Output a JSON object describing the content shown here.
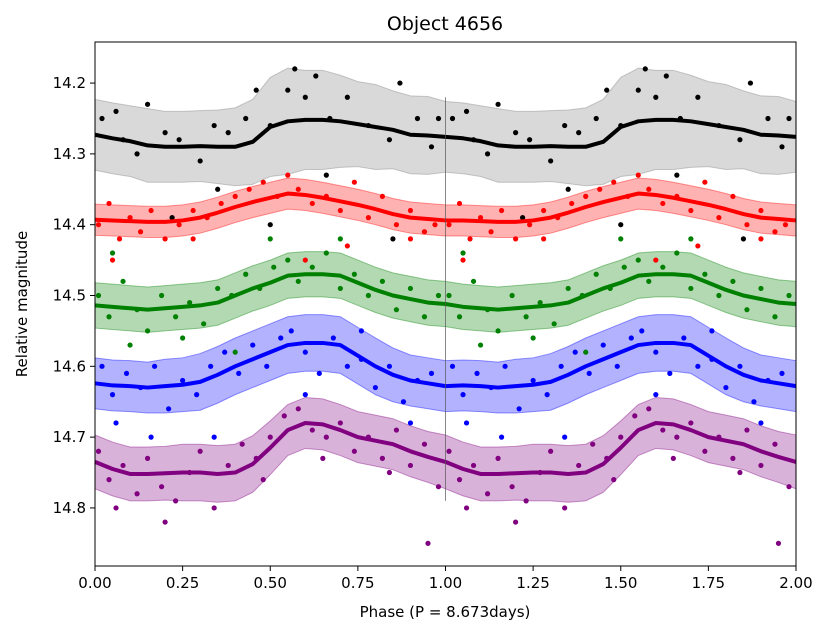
{
  "chart_data": {
    "type": "scatter",
    "title": "Object 4656",
    "xlabel": "Phase (P = 8.673days)",
    "ylabel": "Relative magnitude",
    "xlim": [
      0,
      2
    ],
    "ylim": [
      14.882,
      14.142
    ],
    "y_inverted": true,
    "grid": false,
    "xticks": [
      "0.00",
      "0.25",
      "0.50",
      "0.75",
      "1.00",
      "1.25",
      "1.50",
      "1.75",
      "2.00"
    ],
    "yticks": [
      "14.2",
      "14.3",
      "14.4",
      "14.5",
      "14.6",
      "14.7",
      "14.8"
    ],
    "phase_repeat": true,
    "phase_marker_at": 1.0,
    "mean_phase": [
      0,
      0.05,
      0.1,
      0.15,
      0.2,
      0.25,
      0.3,
      0.35,
      0.4,
      0.45,
      0.5,
      0.55,
      0.6,
      0.65,
      0.7,
      0.75,
      0.8,
      0.85,
      0.9,
      0.95,
      1.0
    ],
    "series": [
      {
        "color": "#000000",
        "band_color": "#808080",
        "mean": [
          14.273,
          14.278,
          14.282,
          14.288,
          14.29,
          14.29,
          14.289,
          14.29,
          14.29,
          14.283,
          14.262,
          14.254,
          14.252,
          14.252,
          14.254,
          14.258,
          14.262,
          14.266,
          14.273,
          14.274,
          14.276
        ],
        "halfwidth": [
          0.05,
          0.05,
          0.05,
          0.052,
          0.05,
          0.05,
          0.05,
          0.052,
          0.055,
          0.06,
          0.07,
          0.075,
          0.07,
          0.07,
          0.065,
          0.06,
          0.06,
          0.055,
          0.055,
          0.055,
          0.05
        ],
        "points": [
          [
            0.02,
            14.25
          ],
          [
            0.06,
            14.24
          ],
          [
            0.08,
            14.28
          ],
          [
            0.12,
            14.3
          ],
          [
            0.15,
            14.23
          ],
          [
            0.2,
            14.27
          ],
          [
            0.24,
            14.28
          ],
          [
            0.3,
            14.31
          ],
          [
            0.34,
            14.26
          ],
          [
            0.38,
            14.27
          ],
          [
            0.43,
            14.25
          ],
          [
            0.46,
            14.21
          ],
          [
            0.5,
            14.26
          ],
          [
            0.55,
            14.21
          ],
          [
            0.57,
            14.18
          ],
          [
            0.6,
            14.22
          ],
          [
            0.63,
            14.19
          ],
          [
            0.67,
            14.25
          ],
          [
            0.72,
            14.22
          ],
          [
            0.78,
            14.26
          ],
          [
            0.84,
            14.28
          ],
          [
            0.87,
            14.2
          ],
          [
            0.92,
            14.25
          ],
          [
            0.96,
            14.29
          ],
          [
            0.98,
            14.25
          ],
          [
            0.22,
            14.39
          ],
          [
            0.5,
            14.4
          ],
          [
            0.85,
            14.42
          ],
          [
            0.66,
            14.33
          ],
          [
            0.35,
            14.35
          ]
        ]
      },
      {
        "color": "#ff0000",
        "band_color": "#ff0000",
        "mean": [
          14.393,
          14.394,
          14.395,
          14.396,
          14.396,
          14.394,
          14.39,
          14.383,
          14.375,
          14.368,
          14.362,
          14.356,
          14.358,
          14.362,
          14.367,
          14.372,
          14.378,
          14.385,
          14.39,
          14.392,
          14.394
        ],
        "halfwidth": [
          0.022,
          0.022,
          0.022,
          0.022,
          0.022,
          0.022,
          0.022,
          0.022,
          0.022,
          0.022,
          0.022,
          0.022,
          0.022,
          0.022,
          0.022,
          0.022,
          0.022,
          0.022,
          0.022,
          0.022,
          0.022
        ],
        "points": [
          [
            0.01,
            14.4
          ],
          [
            0.04,
            14.37
          ],
          [
            0.07,
            14.42
          ],
          [
            0.1,
            14.39
          ],
          [
            0.13,
            14.41
          ],
          [
            0.16,
            14.38
          ],
          [
            0.2,
            14.42
          ],
          [
            0.24,
            14.4
          ],
          [
            0.28,
            14.38
          ],
          [
            0.32,
            14.39
          ],
          [
            0.36,
            14.37
          ],
          [
            0.4,
            14.36
          ],
          [
            0.44,
            14.35
          ],
          [
            0.48,
            14.34
          ],
          [
            0.52,
            14.36
          ],
          [
            0.55,
            14.33
          ],
          [
            0.58,
            14.35
          ],
          [
            0.62,
            14.37
          ],
          [
            0.66,
            14.36
          ],
          [
            0.7,
            14.38
          ],
          [
            0.74,
            14.34
          ],
          [
            0.78,
            14.39
          ],
          [
            0.82,
            14.36
          ],
          [
            0.86,
            14.4
          ],
          [
            0.9,
            14.38
          ],
          [
            0.94,
            14.41
          ],
          [
            0.97,
            14.4
          ],
          [
            0.05,
            14.45
          ],
          [
            0.28,
            14.42
          ],
          [
            0.72,
            14.43
          ],
          [
            0.9,
            14.42
          ],
          [
            0.6,
            14.45
          ]
        ]
      },
      {
        "color": "#008000",
        "band_color": "#008000",
        "mean": [
          14.514,
          14.516,
          14.518,
          14.52,
          14.518,
          14.516,
          14.514,
          14.51,
          14.5,
          14.49,
          14.482,
          14.472,
          14.47,
          14.47,
          14.472,
          14.482,
          14.492,
          14.5,
          14.505,
          14.51,
          14.512
        ],
        "halfwidth": [
          0.032,
          0.032,
          0.032,
          0.032,
          0.032,
          0.032,
          0.032,
          0.032,
          0.032,
          0.032,
          0.032,
          0.032,
          0.032,
          0.032,
          0.032,
          0.032,
          0.032,
          0.032,
          0.032,
          0.032,
          0.032
        ],
        "points": [
          [
            0.01,
            14.5
          ],
          [
            0.04,
            14.53
          ],
          [
            0.08,
            14.48
          ],
          [
            0.12,
            14.52
          ],
          [
            0.15,
            14.55
          ],
          [
            0.19,
            14.5
          ],
          [
            0.23,
            14.53
          ],
          [
            0.27,
            14.51
          ],
          [
            0.31,
            14.54
          ],
          [
            0.35,
            14.49
          ],
          [
            0.39,
            14.5
          ],
          [
            0.43,
            14.47
          ],
          [
            0.47,
            14.49
          ],
          [
            0.51,
            14.46
          ],
          [
            0.55,
            14.45
          ],
          [
            0.58,
            14.48
          ],
          [
            0.62,
            14.46
          ],
          [
            0.66,
            14.44
          ],
          [
            0.7,
            14.49
          ],
          [
            0.74,
            14.47
          ],
          [
            0.78,
            14.5
          ],
          [
            0.82,
            14.48
          ],
          [
            0.86,
            14.52
          ],
          [
            0.9,
            14.49
          ],
          [
            0.94,
            14.53
          ],
          [
            0.98,
            14.5
          ],
          [
            0.05,
            14.44
          ],
          [
            0.1,
            14.57
          ],
          [
            0.25,
            14.56
          ],
          [
            0.5,
            14.42
          ],
          [
            0.7,
            14.42
          ],
          [
            0.4,
            14.58
          ]
        ]
      },
      {
        "color": "#0000ff",
        "band_color": "#0000ff",
        "mean": [
          14.624,
          14.627,
          14.628,
          14.63,
          14.628,
          14.626,
          14.622,
          14.612,
          14.6,
          14.59,
          14.58,
          14.57,
          14.567,
          14.567,
          14.57,
          14.585,
          14.6,
          14.612,
          14.62,
          14.624,
          14.628
        ],
        "halfwidth": [
          0.036,
          0.036,
          0.036,
          0.036,
          0.038,
          0.038,
          0.04,
          0.04,
          0.04,
          0.04,
          0.04,
          0.04,
          0.04,
          0.04,
          0.04,
          0.04,
          0.04,
          0.038,
          0.036,
          0.036,
          0.036
        ],
        "points": [
          [
            0.02,
            14.6
          ],
          [
            0.05,
            14.64
          ],
          [
            0.09,
            14.61
          ],
          [
            0.13,
            14.63
          ],
          [
            0.17,
            14.6
          ],
          [
            0.21,
            14.66
          ],
          [
            0.25,
            14.62
          ],
          [
            0.29,
            14.64
          ],
          [
            0.33,
            14.6
          ],
          [
            0.37,
            14.58
          ],
          [
            0.41,
            14.61
          ],
          [
            0.45,
            14.57
          ],
          [
            0.49,
            14.6
          ],
          [
            0.53,
            14.56
          ],
          [
            0.56,
            14.55
          ],
          [
            0.6,
            14.58
          ],
          [
            0.64,
            14.61
          ],
          [
            0.68,
            14.56
          ],
          [
            0.72,
            14.6
          ],
          [
            0.76,
            14.59
          ],
          [
            0.8,
            14.63
          ],
          [
            0.84,
            14.6
          ],
          [
            0.88,
            14.65
          ],
          [
            0.92,
            14.62
          ],
          [
            0.96,
            14.61
          ],
          [
            0.06,
            14.68
          ],
          [
            0.16,
            14.7
          ],
          [
            0.34,
            14.7
          ],
          [
            0.6,
            14.64
          ],
          [
            0.76,
            14.55
          ],
          [
            0.9,
            14.68
          ]
        ]
      },
      {
        "color": "#800080",
        "band_color": "#800080",
        "mean": [
          14.735,
          14.745,
          14.752,
          14.752,
          14.751,
          14.75,
          14.75,
          14.752,
          14.75,
          14.738,
          14.715,
          14.69,
          14.68,
          14.682,
          14.69,
          14.7,
          14.705,
          14.71,
          14.72,
          14.728,
          14.735
        ],
        "halfwidth": [
          0.038,
          0.038,
          0.038,
          0.038,
          0.038,
          0.04,
          0.04,
          0.04,
          0.04,
          0.04,
          0.038,
          0.036,
          0.036,
          0.036,
          0.036,
          0.036,
          0.036,
          0.036,
          0.036,
          0.036,
          0.038
        ],
        "points": [
          [
            0.01,
            14.72
          ],
          [
            0.04,
            14.76
          ],
          [
            0.08,
            14.74
          ],
          [
            0.12,
            14.78
          ],
          [
            0.15,
            14.73
          ],
          [
            0.19,
            14.77
          ],
          [
            0.23,
            14.79
          ],
          [
            0.27,
            14.75
          ],
          [
            0.3,
            14.72
          ],
          [
            0.34,
            14.8
          ],
          [
            0.38,
            14.74
          ],
          [
            0.42,
            14.71
          ],
          [
            0.46,
            14.73
          ],
          [
            0.5,
            14.7
          ],
          [
            0.54,
            14.67
          ],
          [
            0.58,
            14.66
          ],
          [
            0.62,
            14.69
          ],
          [
            0.66,
            14.7
          ],
          [
            0.7,
            14.68
          ],
          [
            0.74,
            14.72
          ],
          [
            0.78,
            14.7
          ],
          [
            0.82,
            14.73
          ],
          [
            0.86,
            14.69
          ],
          [
            0.9,
            14.74
          ],
          [
            0.94,
            14.71
          ],
          [
            0.98,
            14.77
          ],
          [
            0.06,
            14.8
          ],
          [
            0.2,
            14.82
          ],
          [
            0.48,
            14.76
          ],
          [
            0.65,
            14.73
          ],
          [
            0.95,
            14.85
          ],
          [
            0.84,
            14.75
          ]
        ]
      }
    ]
  }
}
